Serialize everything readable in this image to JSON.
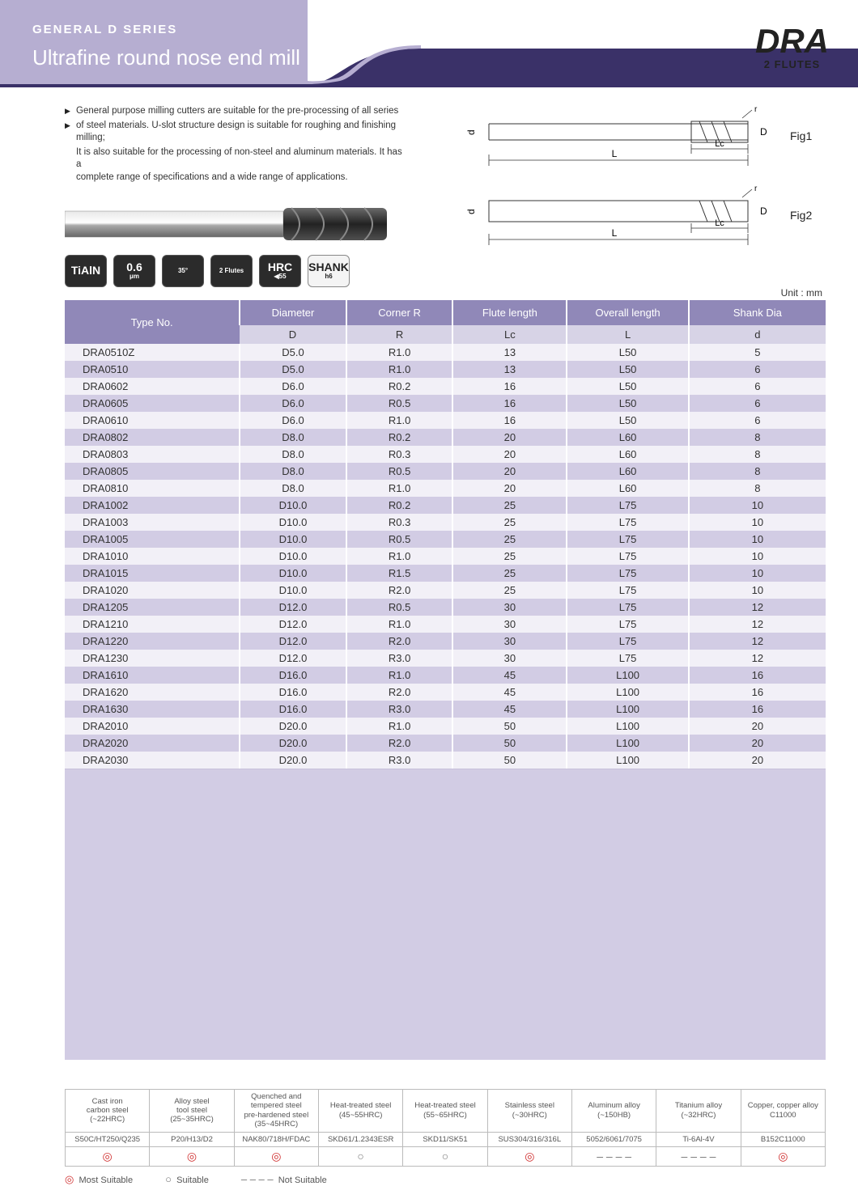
{
  "header": {
    "series": "GENERAL D SERIES",
    "title": "Ultrafine round nose end mill",
    "code": "DRA",
    "subcode": "2 FLUTES"
  },
  "description": {
    "lines": [
      "General purpose milling cutters are suitable for the pre-processing of all series",
      "of steel materials. U-slot structure design is suitable for roughing and finishing milling;",
      "It is also suitable for the processing of non-steel and aluminum materials. It has a",
      "complete range of specifications and a wide range of applications."
    ]
  },
  "figures": {
    "fig1": "Fig1",
    "fig2": "Fig2"
  },
  "dim_labels": {
    "d": "d",
    "D": "D",
    "L": "L",
    "Lc": "Lc"
  },
  "badges": [
    {
      "style": "dark",
      "line1": "TiAlN",
      "line2": ""
    },
    {
      "style": "dark",
      "line1": "0.6",
      "line2": "μm"
    },
    {
      "style": "dark",
      "line1": "",
      "line2": "35°"
    },
    {
      "style": "dark",
      "line1": "",
      "line2": "2 Flutes"
    },
    {
      "style": "dark",
      "line1": "HRC",
      "line2": "◀55"
    },
    {
      "style": "white",
      "line1": "SHANK",
      "line2": "h6"
    }
  ],
  "unit_label": "Unit : mm",
  "table": {
    "headers": {
      "type": "Type No.",
      "diameter": "Diameter",
      "corner": "Corner R",
      "flute": "Flute length",
      "overall": "Overall length",
      "shank": "Shank Dia"
    },
    "sub": {
      "D": "D",
      "R": "R",
      "Lc": "Lc",
      "L": "L",
      "d": "d"
    },
    "rows": [
      [
        "DRA0510Z",
        "D5.0",
        "R1.0",
        "13",
        "L50",
        "5"
      ],
      [
        "DRA0510",
        "D5.0",
        "R1.0",
        "13",
        "L50",
        "6"
      ],
      [
        "DRA0602",
        "D6.0",
        "R0.2",
        "16",
        "L50",
        "6"
      ],
      [
        "DRA0605",
        "D6.0",
        "R0.5",
        "16",
        "L50",
        "6"
      ],
      [
        "DRA0610",
        "D6.0",
        "R1.0",
        "16",
        "L50",
        "6"
      ],
      [
        "DRA0802",
        "D8.0",
        "R0.2",
        "20",
        "L60",
        "8"
      ],
      [
        "DRA0803",
        "D8.0",
        "R0.3",
        "20",
        "L60",
        "8"
      ],
      [
        "DRA0805",
        "D8.0",
        "R0.5",
        "20",
        "L60",
        "8"
      ],
      [
        "DRA0810",
        "D8.0",
        "R1.0",
        "20",
        "L60",
        "8"
      ],
      [
        "DRA1002",
        "D10.0",
        "R0.2",
        "25",
        "L75",
        "10"
      ],
      [
        "DRA1003",
        "D10.0",
        "R0.3",
        "25",
        "L75",
        "10"
      ],
      [
        "DRA1005",
        "D10.0",
        "R0.5",
        "25",
        "L75",
        "10"
      ],
      [
        "DRA1010",
        "D10.0",
        "R1.0",
        "25",
        "L75",
        "10"
      ],
      [
        "DRA1015",
        "D10.0",
        "R1.5",
        "25",
        "L75",
        "10"
      ],
      [
        "DRA1020",
        "D10.0",
        "R2.0",
        "25",
        "L75",
        "10"
      ],
      [
        "DRA1205",
        "D12.0",
        "R0.5",
        "30",
        "L75",
        "12"
      ],
      [
        "DRA1210",
        "D12.0",
        "R1.0",
        "30",
        "L75",
        "12"
      ],
      [
        "DRA1220",
        "D12.0",
        "R2.0",
        "30",
        "L75",
        "12"
      ],
      [
        "DRA1230",
        "D12.0",
        "R3.0",
        "30",
        "L75",
        "12"
      ],
      [
        "DRA1610",
        "D16.0",
        "R1.0",
        "45",
        "L100",
        "16"
      ],
      [
        "DRA1620",
        "D16.0",
        "R2.0",
        "45",
        "L100",
        "16"
      ],
      [
        "DRA1630",
        "D16.0",
        "R3.0",
        "45",
        "L100",
        "16"
      ],
      [
        "DRA2010",
        "D20.0",
        "R1.0",
        "50",
        "L100",
        "20"
      ],
      [
        "DRA2020",
        "D20.0",
        "R2.0",
        "50",
        "L100",
        "20"
      ],
      [
        "DRA2030",
        "D20.0",
        "R3.0",
        "50",
        "L100",
        "20"
      ]
    ]
  },
  "materials": {
    "cols": [
      {
        "l1": "Cast iron",
        "l2": "carbon steel",
        "l3": "(~22HRC)",
        "l4": "S50C/HT250/Q235",
        "sym": "◎",
        "cls": "red"
      },
      {
        "l1": "Alloy steel",
        "l2": "tool steel",
        "l3": "(25~35HRC)",
        "l4": "P20/H13/D2",
        "sym": "◎",
        "cls": "red"
      },
      {
        "l1": "Quenched and tempered steel",
        "l2": "pre-hardened steel",
        "l3": "(35~45HRC)",
        "l4": "NAK80/718H/FDAC",
        "sym": "◎",
        "cls": "red"
      },
      {
        "l1": "Heat-treated steel",
        "l2": "",
        "l3": "(45~55HRC)",
        "l4": "SKD61/1.2343ESR",
        "sym": "○",
        "cls": "gray"
      },
      {
        "l1": "Heat-treated steel",
        "l2": "",
        "l3": "(55~65HRC)",
        "l4": "SKD11/SK51",
        "sym": "○",
        "cls": "gray"
      },
      {
        "l1": "Stainless steel",
        "l2": "",
        "l3": "(~30HRC)",
        "l4": "SUS304/316/316L",
        "sym": "◎",
        "cls": "red"
      },
      {
        "l1": "Aluminum alloy",
        "l2": "",
        "l3": "(~150HB)",
        "l4": "5052/6061/7075",
        "sym": "‒ ‒ ‒ ‒",
        "cls": "gray"
      },
      {
        "l1": "Titanium alloy",
        "l2": "",
        "l3": "(~32HRC)",
        "l4": "Ti-6Al-4V",
        "sym": "‒ ‒ ‒ ‒",
        "cls": "gray"
      },
      {
        "l1": "Copper, copper alloy",
        "l2": "",
        "l3": "C11000",
        "l4": "B152C11000",
        "sym": "◎",
        "cls": "red"
      }
    ]
  },
  "legend": {
    "most": "Most Suitable",
    "suitable": "Suitable",
    "not": "Not Suitable"
  },
  "colors": {
    "header_bg": "#b6aed1",
    "header_dark": "#3a3168",
    "th_bg": "#9088b8",
    "row_even": "#d2cce4",
    "row_odd": "#f2f0f7"
  }
}
